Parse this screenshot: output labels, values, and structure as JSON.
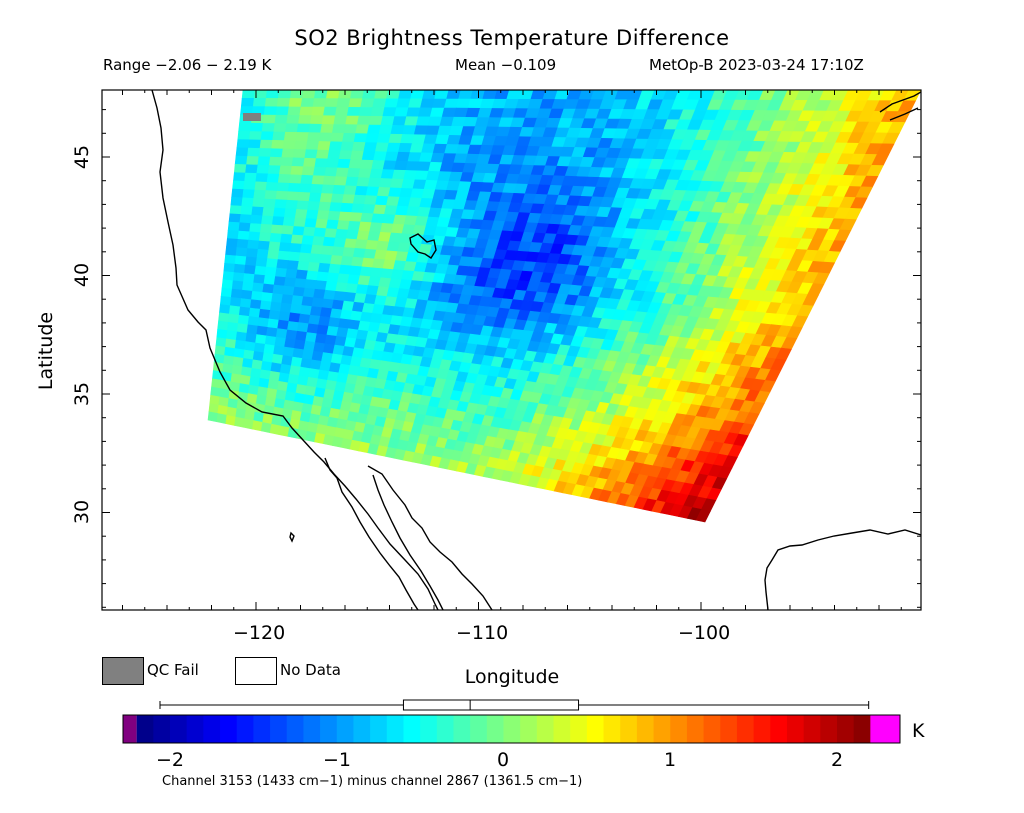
{
  "header": {
    "title": "SO2 Brightness Temperature Difference",
    "range": "Range −2.06 − 2.19 K",
    "mean": "Mean −0.109",
    "satellite": "MetOp-B 2023-03-24 17:10Z"
  },
  "axes": {
    "xlabel": "Longitude",
    "ylabel": "Latitude",
    "xticks": [
      "−120",
      "−110",
      "−100"
    ],
    "yticks": [
      "45",
      "40",
      "35",
      "30"
    ],
    "lon_range": [
      -127,
      -90.5
    ],
    "lat_range": [
      26,
      48
    ]
  },
  "legend": {
    "qc_fail": "QC Fail",
    "no_data": "No Data",
    "qc_fail_color": "#808080",
    "no_data_color": "#ffffff"
  },
  "colorbar": {
    "unit": "K",
    "ticks": [
      "−2",
      "−1",
      "0",
      "1",
      "2"
    ],
    "range": [
      -2.2,
      2.4
    ],
    "underflow_color": "#800080",
    "overflow_color": "#ff00ff",
    "boxplot": {
      "min": -2.06,
      "q1": -0.6,
      "median": -0.2,
      "q3": 0.45,
      "max": 2.19
    }
  },
  "footnote": "Channel 3153 (1433 cm−1) minus channel 2867 (1361.5 cm−1)"
}
